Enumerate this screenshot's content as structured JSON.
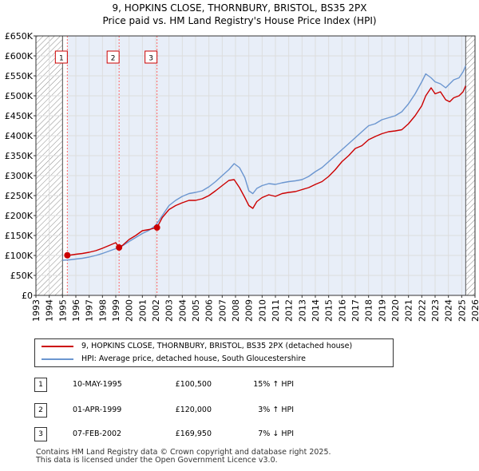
{
  "title_line1": "9, HOPKINS CLOSE, THORNBURY, BRISTOL, BS35 2PX",
  "title_line2": "Price paid vs. HM Land Registry's House Price Index (HPI)",
  "colors": {
    "property": "#cc0000",
    "hpi": "#6b96d0",
    "marker_line": "#ff6666",
    "hatch": "#888888",
    "span": "#e8eef8"
  },
  "chart_data": {
    "type": "line",
    "title": "9, HOPKINS CLOSE, THORNBURY, BRISTOL, BS35 2PX — Price paid vs. HM Land Registry's House Price Index (HPI)",
    "xlabel": "",
    "ylabel": "",
    "xlim": [
      1993,
      2026
    ],
    "ylim": [
      0,
      650000
    ],
    "data_start": 1995.0,
    "data_end": 2025.3,
    "y_ticks": [
      0,
      50000,
      100000,
      150000,
      200000,
      250000,
      300000,
      350000,
      400000,
      450000,
      500000,
      550000,
      600000,
      650000
    ],
    "y_tick_labels": [
      "£0",
      "£50K",
      "£100K",
      "£150K",
      "£200K",
      "£250K",
      "£300K",
      "£350K",
      "£400K",
      "£450K",
      "£500K",
      "£550K",
      "£600K",
      "£650K"
    ],
    "x_ticks": [
      1993,
      1994,
      1995,
      1996,
      1997,
      1998,
      1999,
      2000,
      2001,
      2002,
      2003,
      2004,
      2005,
      2006,
      2007,
      2008,
      2009,
      2010,
      2011,
      2012,
      2013,
      2014,
      2015,
      2016,
      2017,
      2018,
      2019,
      2020,
      2021,
      2022,
      2023,
      2024,
      2025,
      2026
    ],
    "x_tick_labels": [
      "1993",
      "1994",
      "1995",
      "1996",
      "1997",
      "1998",
      "1999",
      "2000",
      "2001",
      "2002",
      "2003",
      "2004",
      "2005",
      "2006",
      "2007",
      "2008",
      "2009",
      "2010",
      "2011",
      "2012",
      "2013",
      "2014",
      "2015",
      "2016",
      "2017",
      "2018",
      "2019",
      "2020",
      "2021",
      "2022",
      "2023",
      "2024",
      "2025",
      "2026"
    ],
    "series": [
      {
        "name": "9, HOPKINS CLOSE, THORNBURY, BRISTOL, BS35 2PX (detached house)",
        "x": [
          1995.36,
          1995.6,
          1996,
          1996.5,
          1997,
          1997.5,
          1998,
          1998.5,
          1999,
          1999.25,
          1999.5,
          2000,
          2000.5,
          2001,
          2001.5,
          2002.1,
          2002.5,
          2003,
          2003.5,
          2004,
          2004.5,
          2005,
          2005.5,
          2006,
          2006.5,
          2007,
          2007.5,
          2007.9,
          2008.3,
          2008.7,
          2009,
          2009.3,
          2009.6,
          2010,
          2010.5,
          2011,
          2011.5,
          2012,
          2012.5,
          2013,
          2013.5,
          2014,
          2014.5,
          2015,
          2015.5,
          2016,
          2016.5,
          2017,
          2017.5,
          2018,
          2018.5,
          2019,
          2019.5,
          2020,
          2020.5,
          2021,
          2021.5,
          2022,
          2022.3,
          2022.7,
          2023,
          2023.4,
          2023.8,
          2024.1,
          2024.4,
          2024.8,
          2025.1,
          2025.3
        ],
        "values": [
          100500,
          101000,
          103000,
          105000,
          108000,
          112000,
          118000,
          125000,
          132000,
          120000,
          125000,
          140000,
          150000,
          162000,
          165000,
          169950,
          195000,
          215000,
          225000,
          232000,
          238000,
          238000,
          242000,
          250000,
          262000,
          275000,
          288000,
          290000,
          270000,
          245000,
          225000,
          218000,
          235000,
          245000,
          252000,
          248000,
          255000,
          258000,
          260000,
          265000,
          270000,
          278000,
          285000,
          298000,
          315000,
          335000,
          350000,
          368000,
          375000,
          390000,
          398000,
          405000,
          410000,
          412000,
          415000,
          430000,
          450000,
          475000,
          500000,
          520000,
          505000,
          510000,
          490000,
          485000,
          495000,
          500000,
          510000,
          525000
        ]
      },
      {
        "name": "HPI: Average price, detached house, South Gloucestershire",
        "x": [
          1995,
          1995.5,
          1996,
          1996.5,
          1997,
          1997.5,
          1998,
          1998.5,
          1999,
          1999.5,
          2000,
          2000.5,
          2001,
          2001.5,
          2002,
          2002.5,
          2003,
          2003.5,
          2004,
          2004.5,
          2005,
          2005.5,
          2006,
          2006.5,
          2007,
          2007.5,
          2007.9,
          2008.3,
          2008.7,
          2009,
          2009.3,
          2009.6,
          2010,
          2010.5,
          2011,
          2011.5,
          2012,
          2012.5,
          2013,
          2013.5,
          2014,
          2014.5,
          2015,
          2015.5,
          2016,
          2016.5,
          2017,
          2017.5,
          2018,
          2018.5,
          2019,
          2019.5,
          2020,
          2020.5,
          2021,
          2021.5,
          2022,
          2022.3,
          2022.7,
          2023,
          2023.4,
          2023.8,
          2024.1,
          2024.4,
          2024.8,
          2025.1,
          2025.3
        ],
        "values": [
          88000,
          89000,
          91000,
          93000,
          96000,
          100000,
          105000,
          111000,
          117000,
          124000,
          135000,
          145000,
          155000,
          163000,
          175000,
          200000,
          225000,
          238000,
          248000,
          255000,
          258000,
          262000,
          272000,
          285000,
          300000,
          315000,
          330000,
          320000,
          295000,
          262000,
          255000,
          268000,
          275000,
          280000,
          278000,
          282000,
          285000,
          287000,
          290000,
          298000,
          310000,
          320000,
          335000,
          350000,
          365000,
          380000,
          395000,
          410000,
          425000,
          430000,
          440000,
          445000,
          450000,
          460000,
          480000,
          505000,
          535000,
          555000,
          545000,
          535000,
          530000,
          520000,
          530000,
          540000,
          545000,
          560000,
          575000
        ]
      }
    ],
    "transactions": [
      {
        "num": "1",
        "x": 1995.36,
        "price": 100500
      },
      {
        "num": "2",
        "x": 1999.25,
        "price": 120000
      },
      {
        "num": "3",
        "x": 2002.1,
        "price": 169950
      }
    ]
  },
  "legend": {
    "property_label": "9, HOPKINS CLOSE, THORNBURY, BRISTOL, BS35 2PX (detached house)",
    "hpi_label": "HPI: Average price, detached house, South Gloucestershire"
  },
  "table": {
    "rows": [
      {
        "num": "1",
        "date": "10-MAY-1995",
        "price": "£100,500",
        "hpi": "15% ↑ HPI"
      },
      {
        "num": "2",
        "date": "01-APR-1999",
        "price": "£120,000",
        "hpi": "3% ↑ HPI"
      },
      {
        "num": "3",
        "date": "07-FEB-2002",
        "price": "£169,950",
        "hpi": "7% ↓ HPI"
      }
    ]
  },
  "footer": {
    "line1": "Contains HM Land Registry data © Crown copyright and database right 2025.",
    "line2": "This data is licensed under the Open Government Licence v3.0."
  }
}
